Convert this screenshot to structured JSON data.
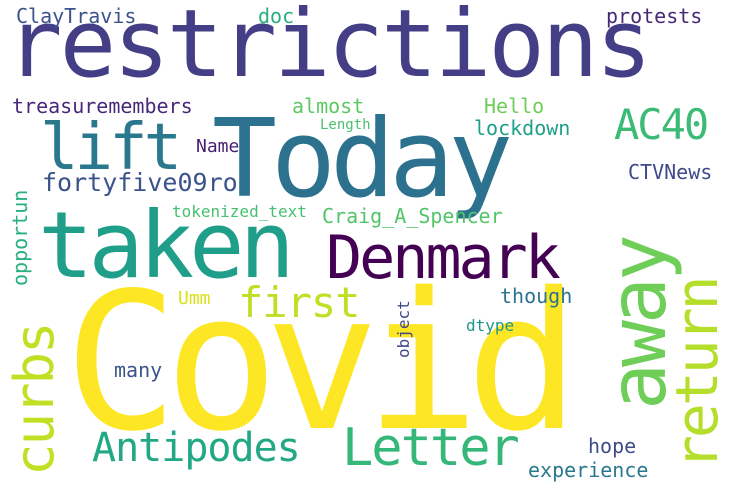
{
  "palette": {
    "yellow": "#fde725",
    "lime": "#b5de2b",
    "green": "#6ece58",
    "teal_green": "#35b779",
    "teal": "#1f9e89",
    "blue_teal": "#26828e",
    "steel": "#31688e",
    "indigo": "#3e4989",
    "purple": "#482878",
    "dark": "#440154"
  },
  "words": [
    {
      "id": "restrictions",
      "text": "restrictions"
    },
    {
      "id": "today",
      "text": "Today"
    },
    {
      "id": "taken",
      "text": "taken"
    },
    {
      "id": "denmark",
      "text": "Denmark"
    },
    {
      "id": "covid",
      "text": "Covid"
    },
    {
      "id": "away",
      "text": "away"
    },
    {
      "id": "return",
      "text": "return"
    },
    {
      "id": "lift",
      "text": "lift"
    },
    {
      "id": "letter",
      "text": "Letter"
    },
    {
      "id": "antipodes",
      "text": "Antipodes"
    },
    {
      "id": "curbs",
      "text": "curbs"
    },
    {
      "id": "first",
      "text": "first"
    },
    {
      "id": "ac40",
      "text": "AC40"
    },
    {
      "id": "fortyfive09ro",
      "text": "fortyfive09ro"
    },
    {
      "id": "claytravis",
      "text": "ClayTravis"
    },
    {
      "id": "doc",
      "text": "doc"
    },
    {
      "id": "protests",
      "text": "protests"
    },
    {
      "id": "treasuremembers",
      "text": "treasuremembers"
    },
    {
      "id": "almost",
      "text": "almost"
    },
    {
      "id": "hello",
      "text": "Hello"
    },
    {
      "id": "length",
      "text": "Length"
    },
    {
      "id": "lockdown",
      "text": "lockdown"
    },
    {
      "id": "name",
      "text": "Name"
    },
    {
      "id": "ctvnews",
      "text": "CTVNews"
    },
    {
      "id": "tokenized",
      "text": "tokenized_text"
    },
    {
      "id": "craig",
      "text": "Craig_A_Spencer"
    },
    {
      "id": "opportun",
      "text": "opportun"
    },
    {
      "id": "umm",
      "text": "Umm"
    },
    {
      "id": "though",
      "text": "though"
    },
    {
      "id": "object",
      "text": "object"
    },
    {
      "id": "dtype",
      "text": "dtype"
    },
    {
      "id": "many",
      "text": "many"
    },
    {
      "id": "hope",
      "text": "hope"
    },
    {
      "id": "experience",
      "text": "experience"
    }
  ]
}
